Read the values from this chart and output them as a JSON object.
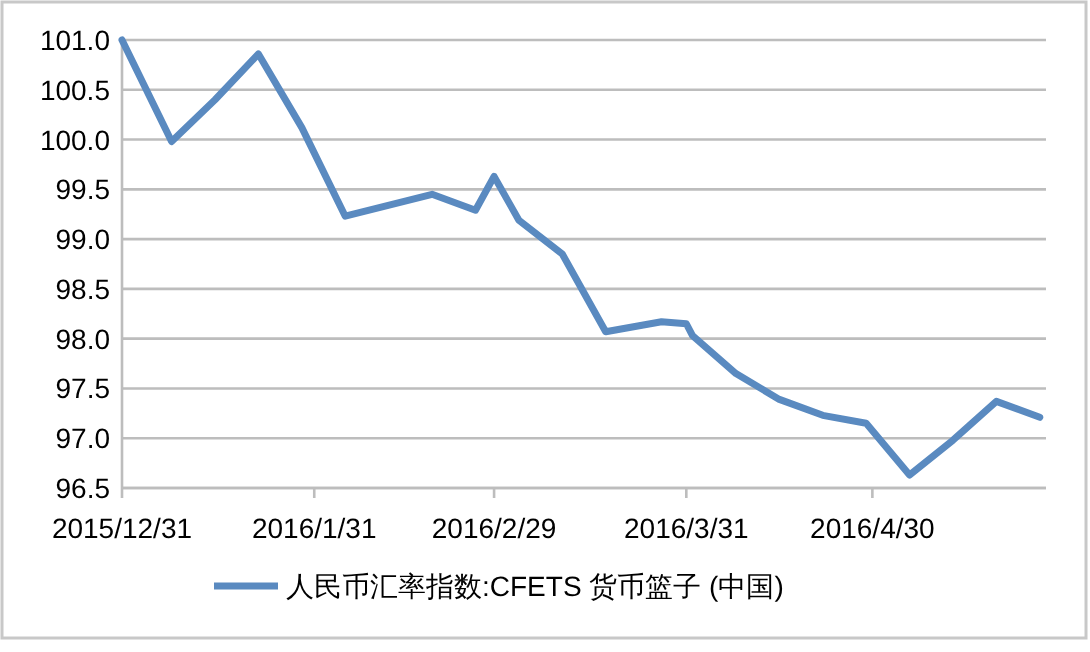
{
  "chart_data": {
    "type": "line",
    "x": [
      "2015-12-31",
      "2016-01-08",
      "2016-01-15",
      "2016-01-22",
      "2016-01-29",
      "2016-02-05",
      "2016-02-19",
      "2016-02-26",
      "2016-02-29",
      "2016-03-04",
      "2016-03-11",
      "2016-03-18",
      "2016-03-27",
      "2016-03-31",
      "2016-04-01",
      "2016-04-08",
      "2016-04-15",
      "2016-04-22",
      "2016-04-29",
      "2016-05-06",
      "2016-05-13",
      "2016-05-20",
      "2016-05-27"
    ],
    "series": [
      {
        "name": "人民币汇率指数:CFETS 货币篮子 (中国)",
        "color": "#5a8ac0",
        "values": [
          101.0,
          99.98,
          100.4,
          100.86,
          100.12,
          99.23,
          99.45,
          99.29,
          99.63,
          99.19,
          98.85,
          98.07,
          98.17,
          98.15,
          98.03,
          97.65,
          97.39,
          97.23,
          97.15,
          96.63,
          96.98,
          97.37,
          97.21
        ]
      }
    ],
    "xlim": [
      "2015-12-31",
      "2016-05-28"
    ],
    "xticks": [
      {
        "value": "2015-12-31",
        "label": "2015/12/31"
      },
      {
        "value": "2016-01-31",
        "label": "2016/1/31"
      },
      {
        "value": "2016-02-29",
        "label": "2016/2/29"
      },
      {
        "value": "2016-03-31",
        "label": "2016/3/31"
      },
      {
        "value": "2016-04-30",
        "label": "2016/4/30"
      }
    ],
    "ylim": [
      96.5,
      101.0
    ],
    "yticks": [
      {
        "value": 96.5,
        "label": "96.5"
      },
      {
        "value": 97,
        "label": "97.0"
      },
      {
        "value": 97.5,
        "label": "97.5"
      },
      {
        "value": 98,
        "label": "98.0"
      },
      {
        "value": 98.5,
        "label": "98.5"
      },
      {
        "value": 99,
        "label": "99.0"
      },
      {
        "value": 99.5,
        "label": "99.5"
      },
      {
        "value": 100,
        "label": "100.0"
      },
      {
        "value": 100.5,
        "label": "100.5"
      },
      {
        "value": 101,
        "label": "101.0"
      }
    ],
    "grid": "y",
    "legend": "bottom"
  }
}
